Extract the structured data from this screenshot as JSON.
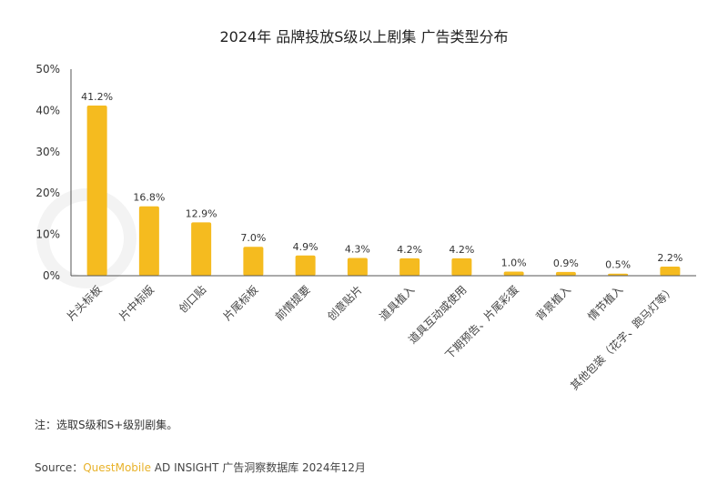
{
  "chart_data": {
    "type": "bar",
    "title": "2024年 品牌投放S级以上剧集 广告类型分布",
    "categories": [
      "片头标板",
      "片中标版",
      "创口贴",
      "片尾标板",
      "前情提要",
      "创意贴片",
      "道具植入",
      "道具互动或使用",
      "下期预告、片尾彩蛋",
      "背景植入",
      "情节植入",
      "其他包装（花字、跑马灯等）"
    ],
    "values": [
      41.2,
      16.8,
      12.9,
      7.0,
      4.9,
      4.3,
      4.2,
      4.2,
      1.0,
      0.9,
      0.5,
      2.2
    ],
    "value_labels": [
      "41.2%",
      "16.8%",
      "12.9%",
      "7.0%",
      "4.9%",
      "4.3%",
      "4.2%",
      "4.2%",
      "1.0%",
      "0.9%",
      "0.5%",
      "2.2%"
    ],
    "ylim": [
      0,
      50
    ],
    "yticks": [
      "0%",
      "10%",
      "20%",
      "30%",
      "40%",
      "50%"
    ],
    "xlabel": "",
    "ylabel": "",
    "grid": false,
    "bar_color": "#f5bb1f"
  },
  "watermark": "QUESTMOBILE",
  "note": "注：选取S级和S+级别剧集。",
  "source": {
    "prefix": "Source：",
    "brand": "QuestMobile",
    "rest": " AD INSIGHT 广告洞察数据库 2024年12月"
  }
}
